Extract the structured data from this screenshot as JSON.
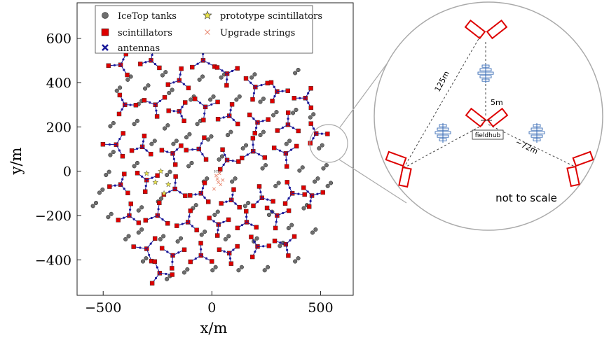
{
  "chart_data": {
    "type": "scatter",
    "xlabel": "x/m",
    "ylabel": "y/m",
    "xlim": [
      -620,
      650
    ],
    "ylim": [
      -560,
      760
    ],
    "xticks": [
      {
        "value": -500,
        "label": "−500"
      },
      {
        "value": 0,
        "label": "0"
      },
      {
        "value": 500,
        "label": "500"
      }
    ],
    "yticks": [
      {
        "value": -400,
        "label": "−400"
      },
      {
        "value": -200,
        "label": "−200"
      },
      {
        "value": 0,
        "label": "0"
      },
      {
        "value": 200,
        "label": "200"
      },
      {
        "value": 400,
        "label": "400"
      },
      {
        "value": 600,
        "label": "600"
      }
    ],
    "grid": false,
    "legend_position": "top",
    "legend": [
      {
        "label": "IceTop tanks",
        "marker": "circle",
        "color": "#6e6e6e"
      },
      {
        "label": "scintillators",
        "marker": "square",
        "color": "#dd0000"
      },
      {
        "label": "antennas",
        "marker": "x-bold",
        "color": "#1a1a9a"
      },
      {
        "label": "prototype scintillators",
        "marker": "star",
        "color": "#e8e24a"
      },
      {
        "label": "Upgrade strings",
        "marker": "x",
        "color": "#e88870"
      }
    ],
    "stations": [
      [
        -420,
        480
      ],
      [
        -280,
        500
      ],
      [
        -150,
        410
      ],
      [
        -40,
        500
      ],
      [
        70,
        440
      ],
      [
        200,
        380
      ],
      [
        300,
        360
      ],
      [
        430,
        330
      ],
      [
        -400,
        300
      ],
      [
        -260,
        300
      ],
      [
        -150,
        270
      ],
      [
        -30,
        290
      ],
      [
        80,
        250
      ],
      [
        210,
        220
      ],
      [
        350,
        210
      ],
      [
        480,
        170
      ],
      [
        -440,
        120
      ],
      [
        -320,
        110
      ],
      [
        -180,
        80
      ],
      [
        -60,
        100
      ],
      [
        70,
        50
      ],
      [
        190,
        90
      ],
      [
        340,
        80
      ],
      [
        -420,
        -60
      ],
      [
        -300,
        -40
      ],
      [
        -170,
        -80
      ],
      [
        -50,
        -100
      ],
      [
        90,
        -130
      ],
      [
        230,
        -120
      ],
      [
        370,
        -100
      ],
      [
        460,
        -110
      ],
      [
        -380,
        -200
      ],
      [
        -250,
        -200
      ],
      [
        -110,
        -230
      ],
      [
        30,
        -240
      ],
      [
        160,
        -230
      ],
      [
        300,
        -200
      ],
      [
        -300,
        -350
      ],
      [
        -180,
        -380
      ],
      [
        -50,
        -380
      ],
      [
        80,
        -370
      ],
      [
        210,
        -340
      ],
      [
        340,
        -330
      ],
      [
        -240,
        -460
      ]
    ],
    "icetop_tanks": [
      [
        -540,
        -150
      ],
      [
        -510,
        -90
      ],
      [
        -480,
        -10
      ],
      [
        -460,
        80
      ],
      [
        -460,
        210
      ],
      [
        -430,
        370
      ],
      [
        -380,
        420
      ],
      [
        -350,
        220
      ],
      [
        -350,
        30
      ],
      [
        -330,
        -170
      ],
      [
        -330,
        -270
      ],
      [
        -310,
        -400
      ],
      [
        -300,
        380
      ],
      [
        -270,
        130
      ],
      [
        -240,
        -130
      ],
      [
        -230,
        -300
      ],
      [
        -220,
        440
      ],
      [
        -210,
        200
      ],
      [
        -200,
        -10
      ],
      [
        -200,
        -480
      ],
      [
        -190,
        360
      ],
      [
        -170,
        130
      ],
      [
        -150,
        -310
      ],
      [
        -120,
        -450
      ],
      [
        -110,
        160
      ],
      [
        -100,
        30
      ],
      [
        -90,
        330
      ],
      [
        -80,
        -160
      ],
      [
        -60,
        220
      ],
      [
        -50,
        420
      ],
      [
        -40,
        -280
      ],
      [
        -30,
        -40
      ],
      [
        -10,
        150
      ],
      [
        0,
        330
      ],
      [
        10,
        -440
      ],
      [
        20,
        -190
      ],
      [
        40,
        60
      ],
      [
        50,
        430
      ],
      [
        70,
        -300
      ],
      [
        80,
        170
      ],
      [
        100,
        -40
      ],
      [
        120,
        330
      ],
      [
        130,
        -440
      ],
      [
        150,
        110
      ],
      [
        160,
        -150
      ],
      [
        190,
        430
      ],
      [
        200,
        -310
      ],
      [
        230,
        170
      ],
      [
        240,
        20
      ],
      [
        250,
        -440
      ],
      [
        270,
        -190
      ],
      [
        290,
        260
      ],
      [
        300,
        -60
      ],
      [
        320,
        -330
      ],
      [
        350,
        130
      ],
      [
        360,
        -250
      ],
      [
        380,
        270
      ],
      [
        390,
        -400
      ],
      [
        410,
        10
      ],
      [
        430,
        -160
      ],
      [
        460,
        250
      ],
      [
        470,
        -270
      ],
      [
        480,
        -40
      ],
      [
        500,
        110
      ],
      [
        520,
        20
      ],
      [
        540,
        -60
      ],
      [
        390,
        450
      ],
      [
        -390,
        -300
      ],
      [
        -470,
        -200
      ],
      [
        230,
        320
      ],
      [
        -330,
        310
      ]
    ],
    "prototype_scintillators": [
      [
        -300,
        -10
      ],
      [
        -260,
        -50
      ],
      [
        -220,
        -100
      ],
      [
        -235,
        0
      ],
      [
        -200,
        -60
      ]
    ],
    "upgrade_strings": [
      [
        20,
        -20
      ],
      [
        30,
        -50
      ],
      [
        40,
        -60
      ],
      [
        10,
        -80
      ],
      [
        50,
        -40
      ],
      [
        35,
        -10
      ],
      [
        25,
        -35
      ]
    ],
    "upgrade_label": "ICL",
    "inset": {
      "label_125": "125m",
      "label_5": "5m",
      "label_72": "~72m",
      "fieldhub": "fieldhub",
      "note": "not to scale"
    }
  }
}
